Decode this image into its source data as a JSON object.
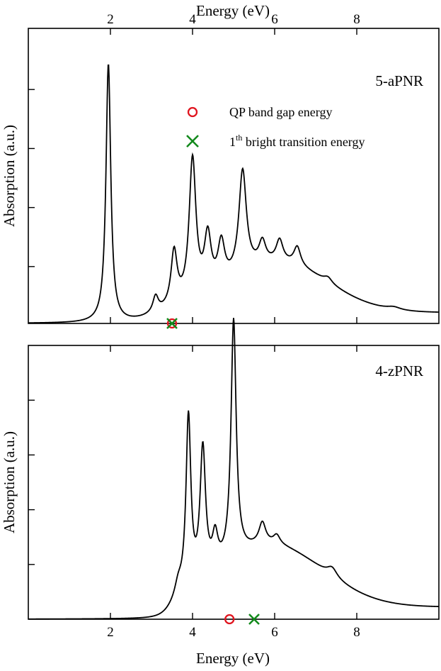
{
  "chart_data": [
    {
      "type": "line",
      "panel_label": "5-aPNR",
      "title": "",
      "xlabel": "Energy (eV)",
      "ylabel": "Absorption (a.u.)",
      "xlim": [
        0,
        10
      ],
      "ylim": [
        0,
        1
      ],
      "xticks": [
        "2",
        "4",
        "6",
        "8"
      ],
      "legend": {
        "position": "top-center",
        "entries": [
          {
            "marker": "circle",
            "color": "#e0141e",
            "label": "QP band gap energy"
          },
          {
            "marker": "cross",
            "color": "#138a1c",
            "label_prefix": "1",
            "label_sup": "th",
            "label_suffix": " bright transition energy"
          }
        ]
      },
      "peaks": [
        {
          "x": 1.95,
          "amp": 0.96,
          "w": 0.07
        },
        {
          "x": 3.1,
          "amp": 0.06,
          "w": 0.08
        },
        {
          "x": 3.55,
          "amp": 0.2,
          "w": 0.09
        },
        {
          "x": 4.0,
          "amp": 0.52,
          "w": 0.1
        },
        {
          "x": 4.37,
          "amp": 0.2,
          "w": 0.1
        },
        {
          "x": 4.7,
          "amp": 0.15,
          "w": 0.1
        },
        {
          "x": 5.22,
          "amp": 0.38,
          "w": 0.11
        },
        {
          "x": 5.7,
          "amp": 0.08,
          "w": 0.1
        },
        {
          "x": 6.12,
          "amp": 0.08,
          "w": 0.1
        },
        {
          "x": 6.55,
          "amp": 0.07,
          "w": 0.1
        },
        {
          "x": 7.3,
          "amp": 0.02,
          "w": 0.12
        },
        {
          "x": 8.9,
          "amp": 0.01,
          "w": 0.2
        }
      ],
      "background": {
        "onset": 3.0,
        "k": 3.5,
        "height": 0.18,
        "center": 6.1,
        "width": 1.7
      },
      "markers": {
        "qp_gap": 3.5,
        "bright_transition": 3.5
      }
    },
    {
      "type": "line",
      "panel_label": "4-zPNR",
      "title": "",
      "xlabel": "Energy (eV)",
      "ylabel": "Absorption (a.u.)",
      "xlim": [
        0,
        10
      ],
      "ylim": [
        0,
        1
      ],
      "xticks": [
        "2",
        "4",
        "6",
        "8"
      ],
      "peaks": [
        {
          "x": 3.65,
          "amp": 0.04,
          "w": 0.1
        },
        {
          "x": 3.9,
          "amp": 0.56,
          "w": 0.07
        },
        {
          "x": 4.25,
          "amp": 0.42,
          "w": 0.08
        },
        {
          "x": 4.55,
          "amp": 0.1,
          "w": 0.08
        },
        {
          "x": 5.0,
          "amp": 0.78,
          "w": 0.075
        },
        {
          "x": 5.7,
          "amp": 0.07,
          "w": 0.1
        },
        {
          "x": 6.05,
          "amp": 0.03,
          "w": 0.1
        },
        {
          "x": 7.4,
          "amp": 0.03,
          "w": 0.15
        }
      ],
      "background": {
        "onset": 3.5,
        "k": 7.0,
        "height": 0.2,
        "center": 5.9,
        "width": 1.8
      },
      "markers": {
        "qp_gap": 4.9,
        "bright_transition": 5.5
      }
    }
  ],
  "colors": {
    "curve": "#000000",
    "qp_marker": "#e0141e",
    "bright_marker": "#138a1c"
  }
}
